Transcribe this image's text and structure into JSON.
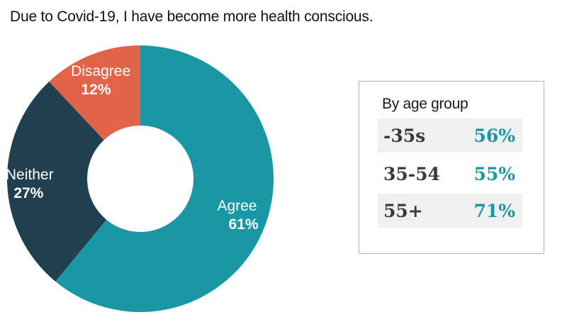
{
  "title": "Due to Covid-19, I have become more health conscious.",
  "chart_data": {
    "type": "pie",
    "style": "donut",
    "title": "Due to Covid-19, I have become more health conscious.",
    "slices": [
      {
        "label": "Agree",
        "value": 61,
        "display": "61%",
        "color": "#1a97a5"
      },
      {
        "label": "Neither",
        "value": 27,
        "display": "27%",
        "color": "#21404f"
      },
      {
        "label": "Disagree",
        "value": 12,
        "display": "12%",
        "color": "#e1634a"
      }
    ]
  },
  "age_group": {
    "title": "By age group",
    "value_color": "#1a97a5",
    "rows": [
      {
        "group": "-35s",
        "value": "56%"
      },
      {
        "group": "35-54",
        "value": "55%"
      },
      {
        "group": "55+",
        "value": "71%"
      }
    ]
  }
}
